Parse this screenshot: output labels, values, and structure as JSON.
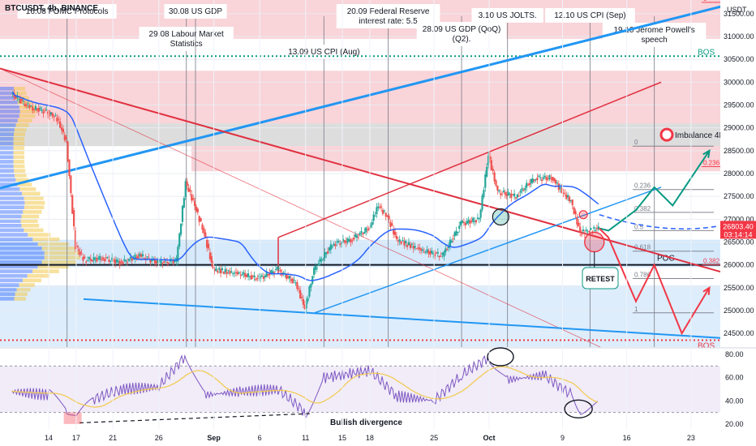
{
  "symbol": "BTCUSDT, 4h, BINANCE",
  "currency": "USDT",
  "price_tag": {
    "price": "26803.40",
    "countdown": "03:14:14",
    "color": "#f23645"
  },
  "events": [
    {
      "label": "16.08 FOMC Protocols",
      "x": "Aug 16"
    },
    {
      "label": "29.08 Labour Market Statistics",
      "x": "Aug 29"
    },
    {
      "label": "30.08 US GDP",
      "x": "Aug 30"
    },
    {
      "label": "13.09 US CPI (Aug)",
      "x": "Sep 13"
    },
    {
      "label": "20.09 Federal Reserve interest rate: 5.5",
      "x": "Sep 20"
    },
    {
      "label": "28.09 US GDP (QoQ) (Q2).",
      "x": "Sep 28"
    },
    {
      "label": "3.10 US JOLTS.",
      "x": "Oct 3"
    },
    {
      "label": "12.10 US CPI (Sep)",
      "x": "Oct 12"
    },
    {
      "label": "19.10 Jerome Powell's speech",
      "x": "Oct 19"
    }
  ],
  "annotations": {
    "bos_up": "BOS",
    "bos_down": "BOS",
    "imbalance": "Imbalance 4H",
    "poc": "POC",
    "retest": "RETEST",
    "bullish_divergence": "Bullish divergence",
    "fib_top": [
      {
        "level": "0",
        "price": 28400
      },
      {
        "level": "0.236",
        "price": 28120
      }
    ],
    "fib_main": [
      {
        "level": "0",
        "price": 28600
      },
      {
        "level": "0.236",
        "price": 27650
      },
      {
        "level": "0.382",
        "price": 27150
      },
      {
        "level": "0.5",
        "price": 26750
      },
      {
        "level": "0.618",
        "price": 26300
      },
      {
        "level": "0.786",
        "price": 25700
      },
      {
        "level": "1",
        "price": 24950
      }
    ],
    "fib_right": [
      {
        "level": "0",
        "price": 31750
      },
      {
        "level": "0.236",
        "price": 28150
      },
      {
        "level": "0.382",
        "price": 26000
      }
    ]
  },
  "colors": {
    "candle_up": "#26a69a",
    "candle_down": "#ef5350",
    "ma": "#2962ff",
    "red_line": "#e0303f",
    "blue_line": "#2196f3",
    "green_arrow": "#089981",
    "zone_red": "#f7c6cc",
    "zone_grey": "#d9d9d9",
    "zone_blue": "#cfe6fb",
    "rsi_line": "#7e57c2",
    "rsi_ma": "#f2c94c",
    "rsi_band": "#ede7f6"
  },
  "chart_data": [
    {
      "type": "candlestick",
      "title": "BTCUSDT, 4h, BINANCE",
      "y_ticks": [
        24500,
        25000,
        25500,
        26000,
        26500,
        27000,
        27500,
        28000,
        28500,
        29000,
        29500,
        30000,
        30500,
        31000,
        31500
      ],
      "y_tick_labels": [
        "24500.00",
        "25000.00",
        "25500.00",
        "26000.00",
        "26500.00",
        "27000.00",
        "27500.00",
        "28000.00",
        "28500.00",
        "29000.00",
        "29500.00",
        "30000.00",
        "30500.00",
        "31000.00",
        "31500.00"
      ],
      "x_ticks": [
        "14",
        "17",
        "21",
        "26",
        "Sep",
        "6",
        "11",
        "15",
        "18",
        "25",
        "Oct",
        "9",
        "16",
        "23"
      ],
      "x_tick_dates": [
        "Aug 14",
        "Aug 17",
        "Aug 21",
        "Aug 26",
        "Sep 1",
        "Sep 6",
        "Sep 11",
        "Sep 15",
        "Sep 18",
        "Sep 25",
        "Oct 1",
        "Oct 9",
        "Oct 16",
        "Oct 23"
      ],
      "ylim": [
        24200,
        31800
      ],
      "price_path": [
        {
          "date": "Aug 10",
          "close": 29750
        },
        {
          "date": "Aug 12",
          "close": 29450
        },
        {
          "date": "Aug 14",
          "close": 29350
        },
        {
          "date": "Aug 15",
          "close": 29200
        },
        {
          "date": "Aug 16",
          "close": 28700
        },
        {
          "date": "Aug 17",
          "close": 26400
        },
        {
          "date": "Aug 18",
          "close": 26100
        },
        {
          "date": "Aug 20",
          "close": 26150
        },
        {
          "date": "Aug 22",
          "close": 26050
        },
        {
          "date": "Aug 24",
          "close": 26200
        },
        {
          "date": "Aug 26",
          "close": 26050
        },
        {
          "date": "Aug 28",
          "close": 26100
        },
        {
          "date": "Aug 29",
          "close": 27800
        },
        {
          "date": "Aug 30",
          "close": 27300
        },
        {
          "date": "Aug 31",
          "close": 26700
        },
        {
          "date": "Sep 1",
          "close": 25900
        },
        {
          "date": "Sep 4",
          "close": 25800
        },
        {
          "date": "Sep 6",
          "close": 25700
        },
        {
          "date": "Sep 8",
          "close": 25900
        },
        {
          "date": "Sep 10",
          "close": 25600
        },
        {
          "date": "Sep 11",
          "close": 25050
        },
        {
          "date": "Sep 12",
          "close": 25900
        },
        {
          "date": "Sep 14",
          "close": 26450
        },
        {
          "date": "Sep 16",
          "close": 26550
        },
        {
          "date": "Sep 18",
          "close": 26800
        },
        {
          "date": "Sep 19",
          "close": 27300
        },
        {
          "date": "Sep 20",
          "close": 27050
        },
        {
          "date": "Sep 21",
          "close": 26550
        },
        {
          "date": "Sep 24",
          "close": 26300
        },
        {
          "date": "Sep 26",
          "close": 26200
        },
        {
          "date": "Sep 28",
          "close": 26900
        },
        {
          "date": "Sep 30",
          "close": 27000
        },
        {
          "date": "Oct 1",
          "close": 28400
        },
        {
          "date": "Oct 2",
          "close": 27600
        },
        {
          "date": "Oct 4",
          "close": 27500
        },
        {
          "date": "Oct 6",
          "close": 27900
        },
        {
          "date": "Oct 8",
          "close": 27900
        },
        {
          "date": "Oct 9",
          "close": 27600
        },
        {
          "date": "Oct 10",
          "close": 27400
        },
        {
          "date": "Oct 11",
          "close": 26700
        },
        {
          "date": "Oct 12",
          "close": 26750
        },
        {
          "date": "Oct 13",
          "close": 26800
        }
      ],
      "projection_down": [
        {
          "date": "Oct 14",
          "close": 26600
        },
        {
          "date": "Oct 17",
          "close": 25200
        },
        {
          "date": "Oct 19",
          "close": 26000
        },
        {
          "date": "Oct 22",
          "close": 24500
        },
        {
          "date": "Oct 25",
          "close": 25500
        }
      ],
      "projection_up": [
        {
          "date": "Oct 14",
          "close": 26750
        },
        {
          "date": "Oct 17",
          "close": 27200
        },
        {
          "date": "Oct 19",
          "close": 27700
        },
        {
          "date": "Oct 21",
          "close": 27300
        },
        {
          "date": "Oct 25",
          "close": 28500
        }
      ]
    },
    {
      "type": "line",
      "title": "",
      "y_ticks": [
        20,
        40,
        60,
        80
      ],
      "y_tick_labels": [
        "20.00",
        "40.00",
        "60.00",
        "80.00"
      ],
      "ylim": [
        15,
        85
      ],
      "rsi": [
        {
          "date": "Aug 10",
          "value": 48
        },
        {
          "date": "Aug 14",
          "value": 45
        },
        {
          "date": "Aug 16",
          "value": 33
        },
        {
          "date": "Aug 17",
          "value": 23
        },
        {
          "date": "Aug 19",
          "value": 42
        },
        {
          "date": "Aug 22",
          "value": 50
        },
        {
          "date": "Aug 26",
          "value": 52
        },
        {
          "date": "Aug 29",
          "value": 80
        },
        {
          "date": "Aug 31",
          "value": 45
        },
        {
          "date": "Sep 4",
          "value": 48
        },
        {
          "date": "Sep 8",
          "value": 50
        },
        {
          "date": "Sep 11",
          "value": 30
        },
        {
          "date": "Sep 13",
          "value": 60
        },
        {
          "date": "Sep 18",
          "value": 66
        },
        {
          "date": "Sep 21",
          "value": 44
        },
        {
          "date": "Sep 25",
          "value": 40
        },
        {
          "date": "Sep 28",
          "value": 62
        },
        {
          "date": "Oct 1",
          "value": 78
        },
        {
          "date": "Oct 3",
          "value": 58
        },
        {
          "date": "Oct 7",
          "value": 62
        },
        {
          "date": "Oct 10",
          "value": 45
        },
        {
          "date": "Oct 11",
          "value": 33
        },
        {
          "date": "Oct 13",
          "value": 38
        }
      ]
    }
  ]
}
